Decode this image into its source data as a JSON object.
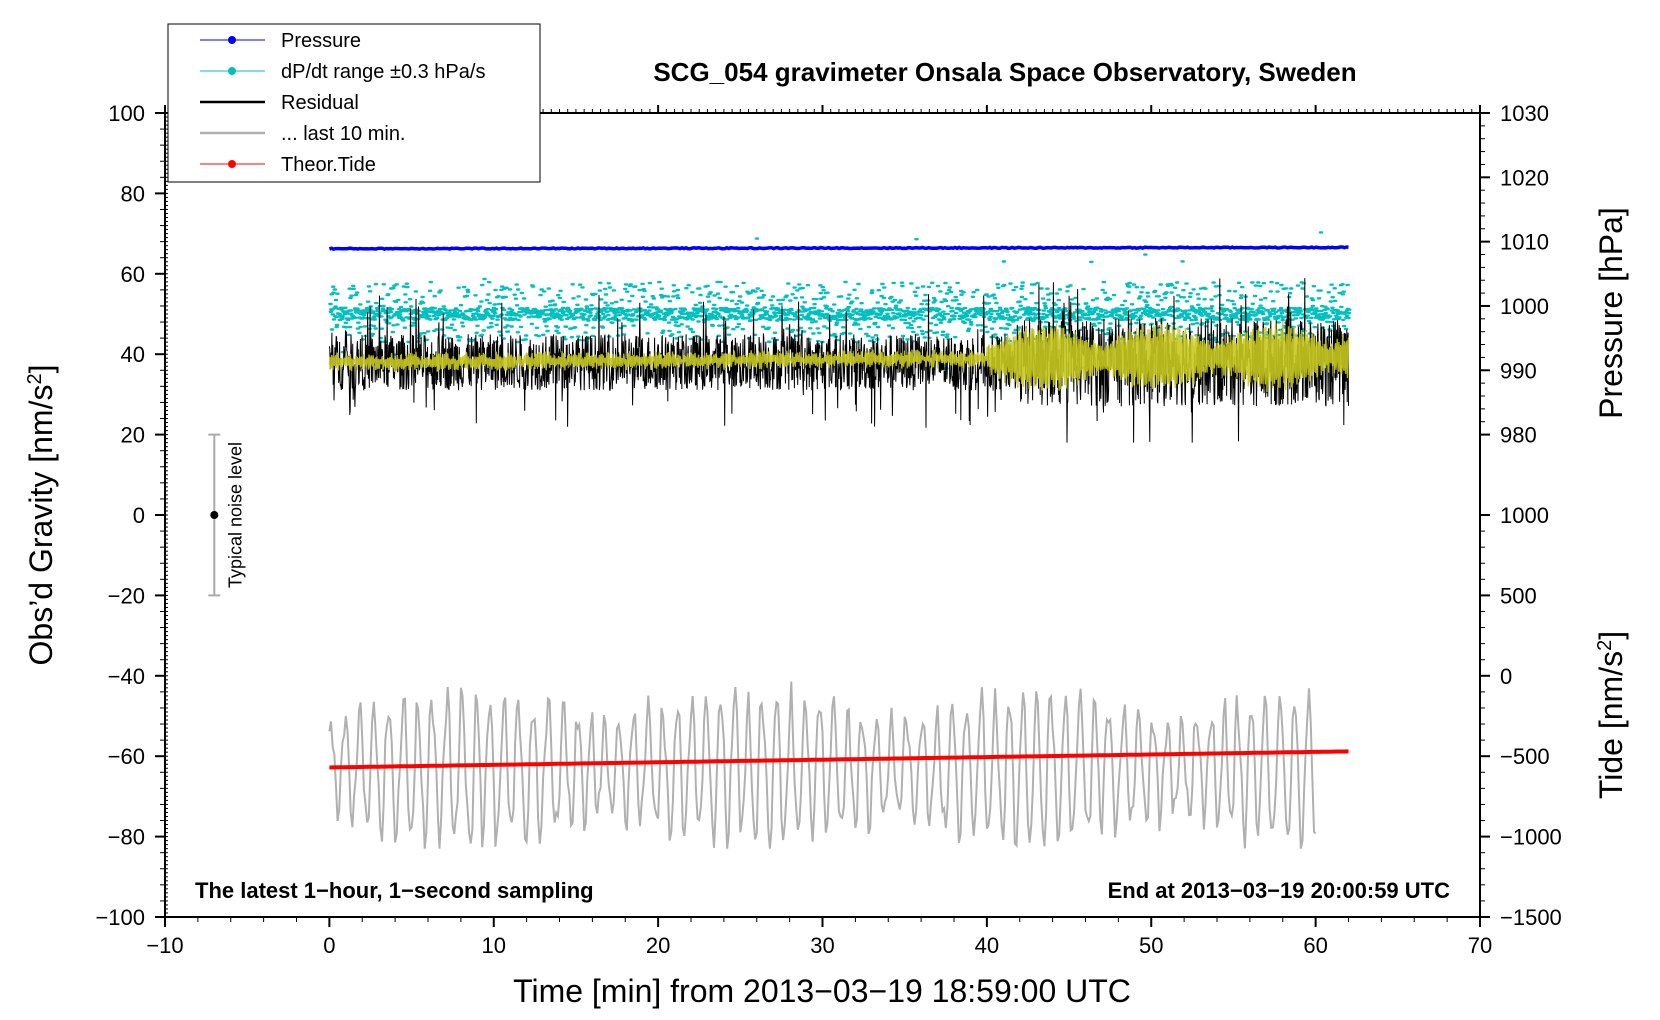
{
  "chart_data": {
    "type": "line",
    "title": "SCG_054 gravimeter Onsala Space Observatory, Sweden",
    "xlabel": "Time [min] from 2013−03−19 18:59:00 UTC",
    "ylabel_left": "Obs’d Gravity [nm/s²]",
    "ylabel_left_main": "Obs’d Gravity [nm/s",
    "ylabel_left_sup": "2",
    "ylabel_left_end": "]",
    "ylabel_right_pressure": "Pressure [hPa]",
    "ylabel_right_tide": "Tide [nm/s²]",
    "ylabel_right_tide_main": "Tide [nm/s",
    "ylabel_right_tide_sup": "2",
    "ylabel_right_tide_end": "]",
    "xlim": [
      -10,
      70
    ],
    "ylim": [
      -100,
      100
    ],
    "pressure_axis": {
      "range": [
        980,
        1030
      ],
      "ticks": [
        "980",
        "990",
        "1000",
        "1010",
        "1020",
        "1030"
      ]
    },
    "tide_axis": {
      "range": [
        -1500,
        1000
      ],
      "ticks": [
        "−1500",
        "−1000",
        "−500",
        "0",
        "500",
        "1000"
      ]
    },
    "x_ticks": [
      "−10",
      "0",
      "10",
      "20",
      "30",
      "40",
      "50",
      "60",
      "70"
    ],
    "y_ticks": [
      "−100",
      "−80",
      "−60",
      "−40",
      "−20",
      "0",
      "20",
      "40",
      "60",
      "80",
      "100"
    ],
    "bottom_left_note": "The latest 1−hour, 1−second sampling",
    "bottom_right_note": "End at 2013−03−19 20:00:59 UTC",
    "noise_marker": {
      "label": "Typical noise level",
      "x": -7,
      "center": 0,
      "low": -20,
      "high": 20
    },
    "legend": [
      {
        "label": "Pressure",
        "color": "#0000ff",
        "style": "line-dot"
      },
      {
        "label": "dP/dt range ±0.3 hPa/s",
        "color": "#00c0c0",
        "style": "line-dot"
      },
      {
        "label": "Residual",
        "color": "#000000",
        "style": "line"
      },
      {
        "label": "... last 10 min.",
        "color": "#b0b0b0",
        "style": "line"
      },
      {
        "label": "Theor.Tide",
        "color": "#ff0000",
        "style": "line-dot"
      }
    ],
    "series": [
      {
        "name": "Pressure",
        "axis": "pressure_hPa",
        "x": [
          0,
          62
        ],
        "values": [
          1008.9,
          1009.1
        ],
        "color": "#0000ff"
      },
      {
        "name": "dP/dt range ±0.3 hPa/s",
        "axis": "gravity_nm_s2",
        "x": [
          0,
          62
        ],
        "values": [
          50,
          50
        ],
        "spread": [
          43,
          58
        ],
        "color": "#00c0c0"
      },
      {
        "name": "Residual",
        "axis": "gravity_nm_s2",
        "x": [
          0,
          62
        ],
        "values": [
          38,
          38
        ],
        "spread": [
          18,
          62
        ],
        "color": "#000000"
      },
      {
        "name": "Residual smoothed",
        "axis": "gravity_nm_s2",
        "x": [
          0,
          62
        ],
        "values": [
          38,
          39
        ],
        "color": "#c8c820"
      },
      {
        "name": "... last 10 min.",
        "axis": "gravity_nm_s2",
        "x": [
          0,
          60
        ],
        "values": [
          -65,
          -60
        ],
        "spread": [
          -83,
          -38
        ],
        "color": "#b0b0b0"
      },
      {
        "name": "Theor.Tide",
        "axis": "tide_nm_s2",
        "x": [
          0,
          62
        ],
        "values": [
          -570,
          -470
        ],
        "color": "#ff0000"
      }
    ]
  }
}
